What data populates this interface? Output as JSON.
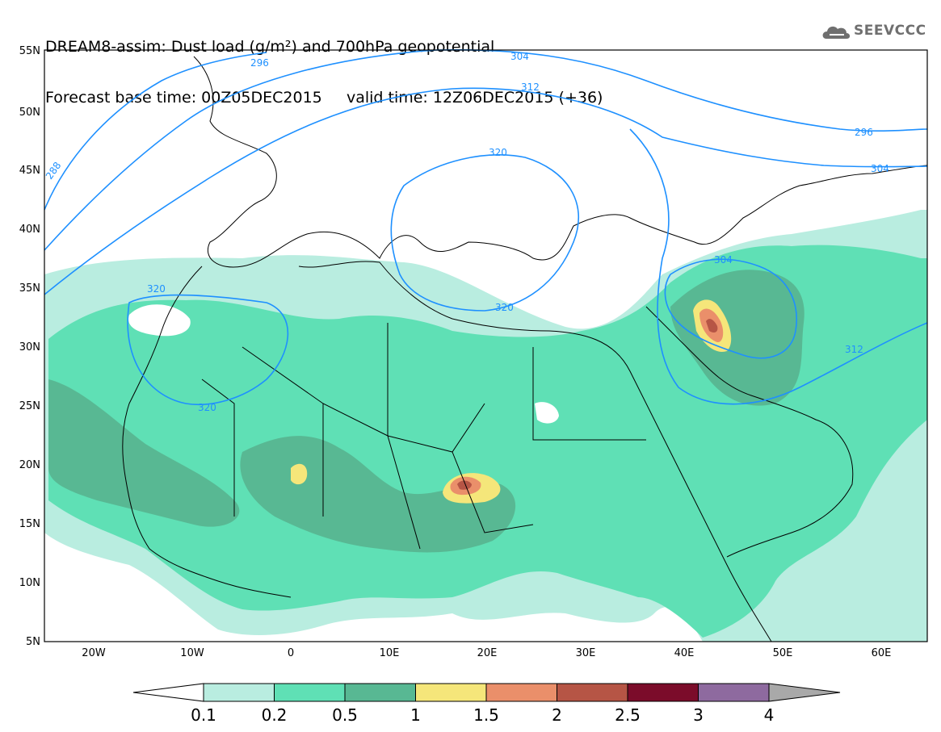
{
  "header": {
    "title_line1": "DREAM8-assim: Dust load (g/m²) and 700hPa geopotential",
    "title_line2": "Forecast base time: 00Z05DEC2015     valid time: 12Z06DEC2015 (+36)",
    "logo_text": "SEEVCCC",
    "logo_icon": "cloud-icon"
  },
  "map": {
    "lat_labels": [
      "55N",
      "50N",
      "45N",
      "40N",
      "35N",
      "30N",
      "25N",
      "20N",
      "15N",
      "10N",
      "5N"
    ],
    "lon_labels": [
      "20W",
      "10W",
      "0",
      "10E",
      "20E",
      "30E",
      "40E",
      "50E",
      "60E"
    ],
    "contour_labels": [
      "296",
      "304",
      "312",
      "320",
      "320",
      "320",
      "320",
      "288",
      "304",
      "312",
      "296",
      "304",
      "320"
    ],
    "contour_color": "#1e90ff",
    "coastline_color": "#000000"
  },
  "colorbar": {
    "labels": [
      "0.1",
      "0.2",
      "0.5",
      "1",
      "1.5",
      "2",
      "2.5",
      "3",
      "4"
    ],
    "colors": [
      "#ffffff",
      "#b9ede0",
      "#5fe0b5",
      "#58b893",
      "#f5e67a",
      "#ea8f6a",
      "#b65545",
      "#7b0c2a",
      "#8e6a9f",
      "#a9a9a9"
    ]
  }
}
